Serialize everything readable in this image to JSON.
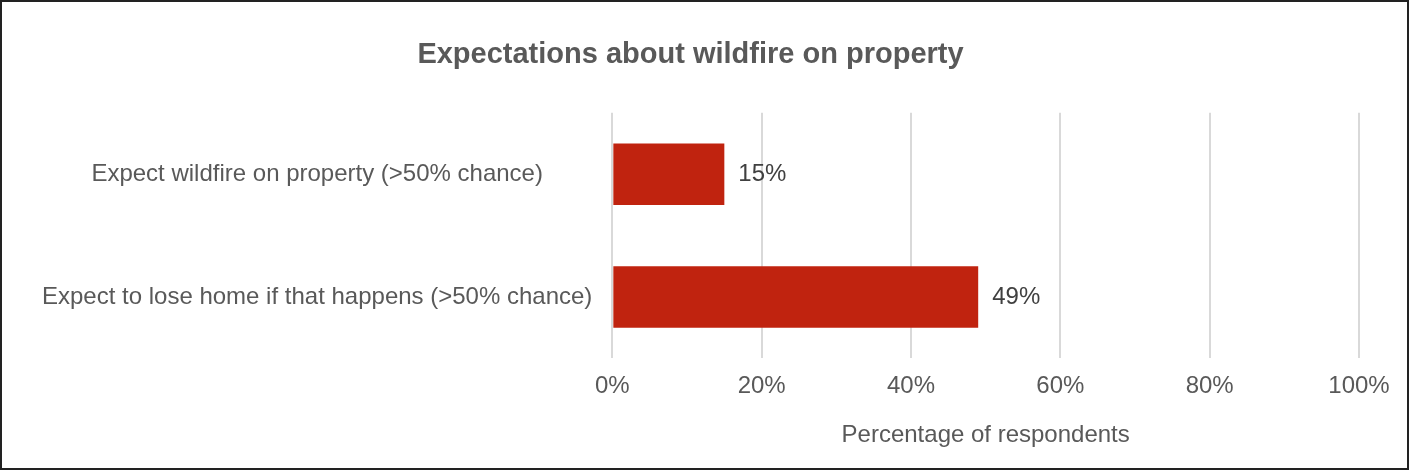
{
  "chart_data": {
    "type": "bar",
    "orientation": "horizontal",
    "title": "Expectations about wildfire on property",
    "xlabel": "Percentage of respondents",
    "categories": [
      "Expect wildfire on property (>50% chance)",
      "Expect to lose home if that happens (>50% chance)"
    ],
    "values": [
      15,
      49
    ],
    "color": "#c0230f",
    "value_labels": [
      "15%",
      "49%"
    ],
    "xlim": [
      0,
      100
    ],
    "xticks": [
      {
        "value": 0,
        "label": "0%"
      },
      {
        "value": 20,
        "label": "20%"
      },
      {
        "value": 40,
        "label": "40%"
      },
      {
        "value": 60,
        "label": "60%"
      },
      {
        "value": 80,
        "label": "80%"
      },
      {
        "value": 100,
        "label": "100%"
      }
    ],
    "grid": "x",
    "legend": false
  }
}
